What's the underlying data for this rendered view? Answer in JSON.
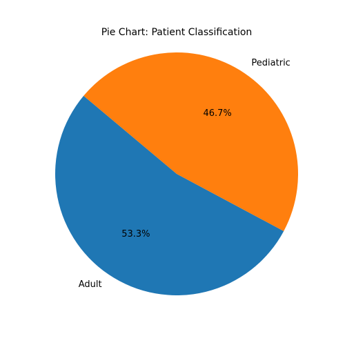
{
  "chart_data": {
    "type": "pie",
    "title": "Pie Chart: Patient Classification",
    "categories": [
      "Adult",
      "Pediatric"
    ],
    "values": [
      53.3,
      46.7
    ],
    "autopct": [
      "53.3%",
      "46.7%"
    ],
    "colors": [
      "#1f77b4",
      "#ff7f0e"
    ],
    "start_angle_deg": 140,
    "direction": "counterclockwise",
    "legend": false
  }
}
